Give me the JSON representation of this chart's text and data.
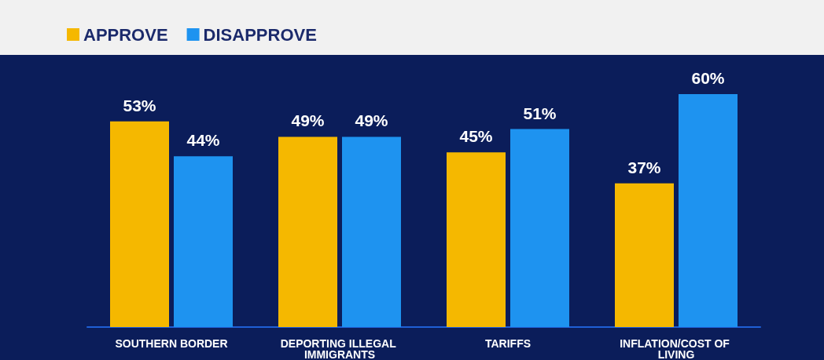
{
  "chart_data": {
    "type": "bar",
    "categories": [
      "SOUTHERN BORDER",
      "DEPORTING ILLEGAL IMMIGRANTS",
      "TARIFFS",
      "INFLATION/COST OF LIVING"
    ],
    "series": [
      {
        "name": "APPROVE",
        "color": "#f5b800",
        "values": [
          53,
          49,
          45,
          37
        ],
        "value_labels": [
          "53%",
          "49%",
          "45%",
          "37%"
        ]
      },
      {
        "name": "DISAPPROVE",
        "color": "#1e93f0",
        "values": [
          44,
          49,
          51,
          60
        ],
        "value_labels": [
          "44%",
          "49%",
          "51%",
          "60%"
        ]
      }
    ],
    "legend": "top left"
  }
}
